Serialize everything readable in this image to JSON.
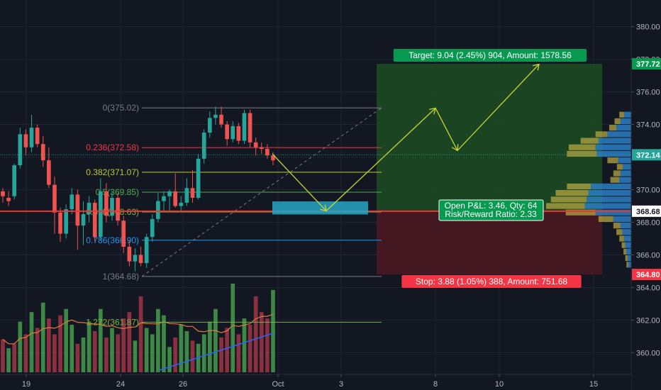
{
  "chart_data": {
    "type": "candlestick",
    "y_range": [
      358.8,
      381.2
    ],
    "y_ticks": [
      "380.00",
      "378.00",
      "376.00",
      "374.00",
      "372.00",
      "370.00",
      "368.00",
      "366.00",
      "364.00",
      "362.00",
      "360.00"
    ],
    "x_ticks": [
      "19",
      "24",
      "26",
      "Oct",
      "3",
      "8",
      "10",
      "15"
    ],
    "last_price": 372.14,
    "last_price_label": "372.14",
    "entry_price": 368.68,
    "entry_label": "368.68",
    "target_price": 377.72,
    "target_label": "377.72",
    "stop_price": 364.8,
    "stop_label": "364.80",
    "candles": [
      {
        "o": 369.9,
        "h": 370.1,
        "l": 369.2,
        "c": 369.6
      },
      {
        "o": 369.5,
        "h": 369.9,
        "l": 369.0,
        "c": 369.3
      },
      {
        "o": 369.6,
        "h": 371.6,
        "l": 369.4,
        "c": 371.5
      },
      {
        "o": 371.5,
        "h": 373.8,
        "l": 371.3,
        "c": 373.4
      },
      {
        "o": 373.4,
        "h": 373.7,
        "l": 372.1,
        "c": 372.6
      },
      {
        "o": 372.6,
        "h": 374.6,
        "l": 372.3,
        "c": 373.8
      },
      {
        "o": 373.8,
        "h": 374.0,
        "l": 372.6,
        "c": 372.8
      },
      {
        "o": 372.8,
        "h": 373.3,
        "l": 371.4,
        "c": 371.8
      },
      {
        "o": 371.8,
        "h": 372.6,
        "l": 370.1,
        "c": 370.3
      },
      {
        "o": 370.3,
        "h": 370.8,
        "l": 367.3,
        "c": 368.6
      },
      {
        "o": 368.6,
        "h": 368.9,
        "l": 366.8,
        "c": 367.3
      },
      {
        "o": 367.3,
        "h": 369.1,
        "l": 367.0,
        "c": 368.8
      },
      {
        "o": 368.8,
        "h": 370.1,
        "l": 368.5,
        "c": 369.7
      },
      {
        "o": 369.7,
        "h": 370.0,
        "l": 366.3,
        "c": 367.8
      },
      {
        "o": 367.8,
        "h": 369.3,
        "l": 366.6,
        "c": 368.5
      },
      {
        "o": 368.5,
        "h": 369.6,
        "l": 368.0,
        "c": 369.2
      },
      {
        "o": 369.2,
        "h": 369.4,
        "l": 366.8,
        "c": 367.1
      },
      {
        "o": 367.1,
        "h": 370.7,
        "l": 366.9,
        "c": 369.9
      },
      {
        "o": 369.9,
        "h": 370.4,
        "l": 368.0,
        "c": 368.4
      },
      {
        "o": 368.4,
        "h": 369.9,
        "l": 368.1,
        "c": 369.5
      },
      {
        "o": 369.5,
        "h": 369.8,
        "l": 367.8,
        "c": 368.1
      },
      {
        "o": 368.1,
        "h": 368.4,
        "l": 366.1,
        "c": 366.5
      },
      {
        "o": 366.5,
        "h": 366.9,
        "l": 365.3,
        "c": 365.6
      },
      {
        "o": 365.6,
        "h": 366.4,
        "l": 365.0,
        "c": 366.0
      },
      {
        "o": 366.0,
        "h": 366.5,
        "l": 365.3,
        "c": 365.5
      },
      {
        "o": 365.5,
        "h": 367.3,
        "l": 365.2,
        "c": 367.1
      },
      {
        "o": 367.1,
        "h": 368.5,
        "l": 366.8,
        "c": 368.2
      },
      {
        "o": 368.2,
        "h": 369.8,
        "l": 368.0,
        "c": 369.3
      },
      {
        "o": 369.3,
        "h": 369.9,
        "l": 368.6,
        "c": 369.6
      },
      {
        "o": 369.6,
        "h": 370.0,
        "l": 368.7,
        "c": 369.9
      },
      {
        "o": 369.9,
        "h": 371.0,
        "l": 368.9,
        "c": 369.0
      },
      {
        "o": 369.0,
        "h": 369.6,
        "l": 368.7,
        "c": 369.2
      },
      {
        "o": 369.2,
        "h": 370.7,
        "l": 369.0,
        "c": 370.1
      },
      {
        "o": 370.1,
        "h": 371.2,
        "l": 369.2,
        "c": 369.5
      },
      {
        "o": 369.5,
        "h": 372.2,
        "l": 369.4,
        "c": 371.9
      },
      {
        "o": 371.9,
        "h": 373.7,
        "l": 371.6,
        "c": 373.5
      },
      {
        "o": 373.5,
        "h": 374.8,
        "l": 373.2,
        "c": 374.4
      },
      {
        "o": 374.4,
        "h": 375.1,
        "l": 374.0,
        "c": 374.6
      },
      {
        "o": 374.6,
        "h": 375.1,
        "l": 373.8,
        "c": 374.0
      },
      {
        "o": 374.0,
        "h": 374.2,
        "l": 372.7,
        "c": 373.1
      },
      {
        "o": 373.1,
        "h": 374.2,
        "l": 372.9,
        "c": 373.9
      },
      {
        "o": 373.9,
        "h": 374.1,
        "l": 372.8,
        "c": 373.0
      },
      {
        "o": 373.0,
        "h": 374.9,
        "l": 372.8,
        "c": 374.7
      },
      {
        "o": 374.7,
        "h": 374.9,
        "l": 372.6,
        "c": 372.9
      },
      {
        "o": 372.9,
        "h": 373.2,
        "l": 372.1,
        "c": 372.6
      },
      {
        "o": 372.6,
        "h": 372.9,
        "l": 372.2,
        "c": 372.5
      },
      {
        "o": 372.5,
        "h": 372.8,
        "l": 371.9,
        "c": 372.1
      },
      {
        "o": 372.1,
        "h": 372.3,
        "l": 371.5,
        "c": 371.8
      }
    ],
    "volumes": [
      52,
      38,
      45,
      80,
      60,
      95,
      70,
      110,
      85,
      60,
      90,
      100,
      75,
      45,
      55,
      80,
      65,
      100,
      55,
      70,
      60,
      85,
      95,
      50,
      120,
      70,
      60,
      100,
      90,
      40,
      55,
      75,
      65,
      50,
      45,
      60,
      80,
      100,
      55,
      70,
      140,
      60,
      85,
      75,
      120,
      95,
      85,
      130
    ],
    "volume_colors": [
      "r",
      "g",
      "r",
      "g",
      "r",
      "g",
      "r",
      "g",
      "r",
      "r",
      "r",
      "g",
      "g",
      "r",
      "g",
      "g",
      "r",
      "g",
      "r",
      "g",
      "r",
      "r",
      "r",
      "g",
      "r",
      "g",
      "g",
      "g",
      "g",
      "g",
      "r",
      "g",
      "g",
      "r",
      "g",
      "g",
      "g",
      "g",
      "r",
      "r",
      "g",
      "r",
      "g",
      "r",
      "r",
      "r",
      "r",
      "g"
    ],
    "volume_ma_label": "",
    "fib_levels": [
      {
        "label": "0(375.02)",
        "price": 375.02,
        "color": "#787b86"
      },
      {
        "label": "0.236(372.58)",
        "price": 372.58,
        "color": "#f23645"
      },
      {
        "label": "0.382(371.07)",
        "price": 371.07,
        "color": "#c0ca33"
      },
      {
        "label": "0.5(369.85)",
        "price": 369.85,
        "color": "#4caf50"
      },
      {
        "label": "0.618(368.63)",
        "price": 368.63,
        "color": "#7cb342"
      },
      {
        "label": "0.786(366.90)",
        "price": 366.9,
        "color": "#2196f3"
      },
      {
        "label": "1(364.68)",
        "price": 364.68,
        "color": "#787b86"
      },
      {
        "label": "1.272(361.87)",
        "price": 361.87,
        "color": "#7cb342"
      }
    ],
    "target_box_label": "Target: 9.04 (2.45%) 904, Amount: 1578.56",
    "stop_box_label": "Stop: 3.88 (1.05%) 388, Amount: 751.68",
    "pnl_line1": "Open P&L: 3.46, Qty: 64",
    "pnl_line2": "Risk/Reward Ratio: 2.33",
    "volume_profile": [
      {
        "price": 374.6,
        "up": 8,
        "down": 12
      },
      {
        "price": 374.2,
        "up": 10,
        "down": 18
      },
      {
        "price": 373.8,
        "up": 12,
        "down": 25
      },
      {
        "price": 373.4,
        "up": 20,
        "down": 40
      },
      {
        "price": 373.0,
        "up": 30,
        "down": 55
      },
      {
        "price": 372.6,
        "up": 45,
        "down": 60
      },
      {
        "price": 372.2,
        "up": 50,
        "down": 58
      },
      {
        "price": 371.8,
        "up": 18,
        "down": 22
      },
      {
        "price": 371.4,
        "up": 10,
        "down": 14
      },
      {
        "price": 371.0,
        "up": 12,
        "down": 18
      },
      {
        "price": 370.6,
        "up": 15,
        "down": 20
      },
      {
        "price": 370.2,
        "up": 40,
        "down": 68
      },
      {
        "price": 369.8,
        "up": 55,
        "down": 72
      },
      {
        "price": 369.4,
        "up": 60,
        "down": 75
      },
      {
        "price": 369.0,
        "up": 65,
        "down": 78
      },
      {
        "price": 368.6,
        "up": 50,
        "down": 60
      },
      {
        "price": 368.2,
        "up": 25,
        "down": 30
      },
      {
        "price": 367.8,
        "up": 12,
        "down": 18
      },
      {
        "price": 367.4,
        "up": 10,
        "down": 15
      },
      {
        "price": 367.0,
        "up": 8,
        "down": 12
      },
      {
        "price": 366.6,
        "up": 6,
        "down": 10
      },
      {
        "price": 366.2,
        "up": 5,
        "down": 8
      },
      {
        "price": 365.8,
        "up": 4,
        "down": 6
      },
      {
        "price": 365.4,
        "up": 3,
        "down": 5
      }
    ],
    "colors": {
      "bg": "#131722",
      "grid": "#1f2431",
      "up": "#26a69a",
      "down": "#ef5350",
      "up_vol": "#4caf50",
      "down_vol": "#b43a4a",
      "target_zone": "#1d4a22",
      "stop_zone": "#4a1820",
      "target_label_bg": "#089950",
      "stop_label_bg": "#f23645",
      "entry_line": "#e53935",
      "arrow": "#c6d536",
      "projection_box": "#26a6c4",
      "vol_ma": "#e07b39",
      "trend_line": "#2962ff",
      "last_price_bg": "#26a69a"
    }
  }
}
